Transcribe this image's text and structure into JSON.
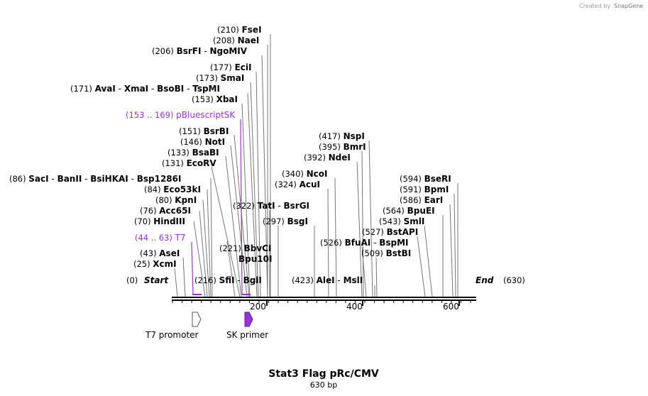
{
  "credit": {
    "text": "Created by",
    "brand": "SnapGene"
  },
  "title": "Stat3 Flag pRc/CMV",
  "length_label": "630 bp",
  "ends": {
    "start": {
      "pos": "(0)",
      "label": "Start"
    },
    "end": {
      "label": "End",
      "pos": "(630)"
    }
  },
  "ruler": [
    "200",
    "400",
    "600"
  ],
  "features": [
    {
      "label": "T7 promoter",
      "color": "#ffffff",
      "stroke": "#555555"
    },
    {
      "label": "SK primer",
      "color": "#9b30e0",
      "stroke": "#5a1a8a"
    }
  ],
  "left_labels": [
    {
      "pos": "(210)",
      "names": [
        "FseI"
      ]
    },
    {
      "pos": "(208)",
      "names": [
        "NaeI"
      ]
    },
    {
      "pos": "(206)",
      "names": [
        "BsrFI",
        "NgoMIV"
      ]
    },
    {
      "pos": "(177)",
      "names": [
        "EciI"
      ]
    },
    {
      "pos": "(173)",
      "names": [
        "SmaI"
      ]
    },
    {
      "pos": "(171)",
      "names": [
        "AvaI",
        "XmaI",
        "BsoBI",
        "TspMI"
      ]
    },
    {
      "pos": "(153)",
      "names": [
        "XbaI"
      ]
    },
    {
      "pos": "(153 .. 169)",
      "names": [
        "pBluescriptSK"
      ],
      "purple": true
    },
    {
      "pos": "(151)",
      "names": [
        "BsrBI"
      ]
    },
    {
      "pos": "(146)",
      "names": [
        "NotI"
      ]
    },
    {
      "pos": "(133)",
      "names": [
        "BsaBI"
      ]
    },
    {
      "pos": "(131)",
      "names": [
        "EcoRV"
      ]
    },
    {
      "pos": "(86)",
      "names": [
        "SacI",
        "BanII",
        "BsiHKAI",
        "Bsp1286I"
      ]
    },
    {
      "pos": "(84)",
      "names": [
        "Eco53kI"
      ]
    },
    {
      "pos": "(80)",
      "names": [
        "KpnI"
      ]
    },
    {
      "pos": "(76)",
      "names": [
        "Acc65I"
      ]
    },
    {
      "pos": "(70)",
      "names": [
        "HindIII"
      ]
    },
    {
      "pos": "(44 .. 63)",
      "names": [
        "T7"
      ],
      "purple": true
    },
    {
      "pos": "(43)",
      "names": [
        "AseI"
      ]
    },
    {
      "pos": "(25)",
      "names": [
        "XcmI"
      ]
    }
  ],
  "middle_labels": [
    {
      "pos": "(322)",
      "names": [
        "TatI",
        "BsrGI"
      ]
    },
    {
      "pos": "(297)",
      "names": [
        "BsgI"
      ]
    },
    {
      "pos": "(221)",
      "names": [
        "BbvCI"
      ]
    },
    {
      "pos": "",
      "names": [
        "Bpu10I"
      ]
    },
    {
      "pos": "(216)",
      "names": [
        "SfiI",
        "BglI"
      ]
    },
    {
      "pos": "(417)",
      "names": [
        "NspI"
      ]
    },
    {
      "pos": "(395)",
      "names": [
        "BmrI"
      ]
    },
    {
      "pos": "(392)",
      "names": [
        "NdeI"
      ]
    },
    {
      "pos": "(340)",
      "names": [
        "NcoI"
      ]
    },
    {
      "pos": "(324)",
      "names": [
        "AcuI"
      ]
    },
    {
      "pos": "(526)",
      "names": [
        "BfuAI",
        "BspMI"
      ]
    },
    {
      "pos": "(509)",
      "names": [
        "BstBI"
      ]
    },
    {
      "pos": "(423)",
      "names": [
        "AleI",
        "MslI"
      ]
    }
  ],
  "right_labels": [
    {
      "pos": "(594)",
      "names": [
        "BseRI"
      ]
    },
    {
      "pos": "(591)",
      "names": [
        "BpmI"
      ]
    },
    {
      "pos": "(586)",
      "names": [
        "EarI"
      ]
    },
    {
      "pos": "(564)",
      "names": [
        "BpuEI"
      ]
    },
    {
      "pos": "(543)",
      "names": [
        "SmlI"
      ]
    },
    {
      "pos": "(527)",
      "names": [
        "BstAPI"
      ]
    }
  ]
}
